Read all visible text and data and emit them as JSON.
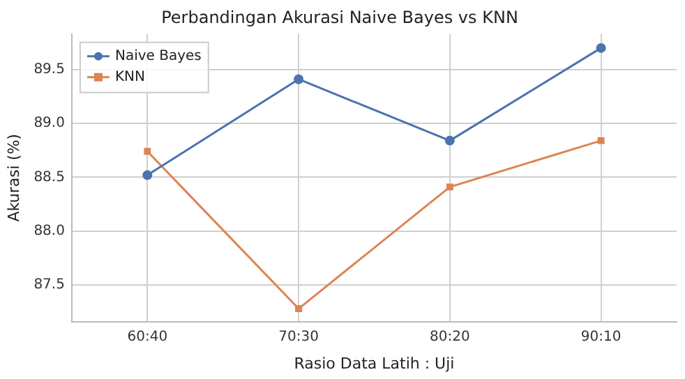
{
  "chart_data": {
    "type": "line",
    "title": "Perbandingan Akurasi Naive Bayes vs KNN",
    "xlabel": "Rasio Data Latih : Uji",
    "ylabel": "Akurasi (%)",
    "categories": [
      "60:40",
      "70:30",
      "80:20",
      "90:10"
    ],
    "series": [
      {
        "name": "Naive Bayes",
        "color": "#4c72b0",
        "values": [
          88.52,
          89.41,
          88.84,
          89.7
        ],
        "marker": "circle"
      },
      {
        "name": "KNN",
        "color": "#dd8452",
        "values": [
          88.74,
          87.28,
          88.41,
          88.84
        ],
        "marker": "square"
      }
    ],
    "ylim": [
      87.16,
      89.83
    ],
    "yticks": [
      87.5,
      {
        "value": 88,
        "label": "88.0"
      },
      88.5,
      {
        "value": 89,
        "label": "89.0"
      },
      89.5
    ],
    "grid": true,
    "legend": "top left",
    "line_style": "solid"
  }
}
